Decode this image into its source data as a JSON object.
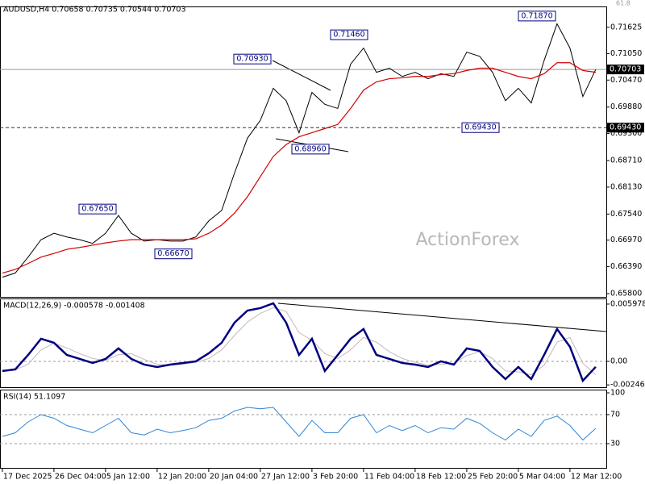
{
  "chart_data": [
    {
      "type": "line",
      "title": "AUDUSD,H4 0.70658 0.70735 0.70544 0.70703",
      "watermark": "ActionForex",
      "fib_label": "61.8",
      "x": [
        0,
        11,
        22,
        33,
        44,
        55,
        66,
        77,
        88,
        99,
        110,
        121,
        132,
        143,
        154,
        165,
        176,
        187,
        198,
        209,
        220,
        231,
        242,
        253,
        264,
        275,
        286,
        297,
        308,
        319,
        330,
        341,
        352,
        363,
        374,
        385,
        396,
        407,
        418,
        429,
        440,
        451,
        462,
        473,
        484,
        495,
        506
      ],
      "xlim": [
        -2,
        515
      ],
      "ylim": [
        0.6573,
        0.7208
      ],
      "yticks": [
        0.71625,
        {
          "value": 0.7105,
          "label": "0.71050"
        },
        {
          "value": 0.7047,
          "label": "0.70470"
        },
        {
          "value": 0.6988,
          "label": "0.69880"
        },
        {
          "value": 0.693,
          "label": "0.69300"
        },
        {
          "value": 0.6871,
          "label": "0.68710"
        },
        {
          "value": 0.6813,
          "label": "0.68130"
        },
        {
          "value": 0.6754,
          "label": "0.67540"
        },
        {
          "value": 0.6697,
          "label": "0.66970"
        },
        {
          "value": 0.6639,
          "label": "0.66390"
        },
        {
          "value": 0.658,
          "label": "0.65800"
        }
      ],
      "series": [
        {
          "color": "#000000",
          "values": [
            0.6616,
            0.6625,
            0.666,
            0.6698,
            0.6712,
            0.6704,
            0.6698,
            0.669,
            0.6712,
            0.6751,
            0.6712,
            0.6695,
            0.6698,
            0.6695,
            0.6695,
            0.6704,
            0.6739,
            0.6762,
            0.6844,
            0.692,
            0.6959,
            0.7029,
            0.7002,
            0.6932,
            0.702,
            0.6994,
            0.6985,
            0.7082,
            0.7117,
            0.7064,
            0.7073,
            0.7055,
            0.7064,
            0.705,
            0.7061,
            0.7055,
            0.7108,
            0.7099,
            0.7064,
            0.7002,
            0.7029,
            0.6997,
            0.709,
            0.717,
            0.7117,
            0.7011,
            0.70703
          ]
        },
        {
          "color": "#d40000",
          "values": [
            0.6625,
            0.6633,
            0.6646,
            0.666,
            0.6668,
            0.6677,
            0.6681,
            0.6686,
            0.6691,
            0.6695,
            0.6698,
            0.6698,
            0.6698,
            0.6698,
            0.6698,
            0.67,
            0.6712,
            0.673,
            0.6756,
            0.6792,
            0.6836,
            0.688,
            0.6906,
            0.6923,
            0.6932,
            0.6941,
            0.695,
            0.6985,
            0.7025,
            0.7043,
            0.705,
            0.7052,
            0.7055,
            0.7055,
            0.7059,
            0.7061,
            0.7068,
            0.7073,
            0.7073,
            0.7064,
            0.7055,
            0.705,
            0.7061,
            0.7085,
            0.7085,
            0.7068,
            0.7064
          ]
        }
      ],
      "annotations": [
        {
          "label": "0.71870",
          "value": 0.7187
        },
        {
          "label": "0.71460",
          "value": 0.7146
        },
        {
          "label": "0.70930",
          "value": 0.7093
        },
        {
          "label": "0.68960",
          "value": 0.6896
        },
        {
          "label": "0.69430",
          "value": 0.6943
        },
        {
          "label": "0.67650",
          "value": 0.6765
        },
        {
          "label": "0.66670",
          "value": 0.6667
        }
      ],
      "current_price": {
        "value": 0.70703,
        "label": "0.70703"
      }
    },
    {
      "type": "line",
      "title": "MACD(12,26,9) -0.000578 -0.001408",
      "x": [
        0,
        11,
        22,
        33,
        44,
        55,
        66,
        77,
        88,
        99,
        110,
        121,
        132,
        143,
        154,
        165,
        176,
        187,
        198,
        209,
        220,
        231,
        242,
        253,
        264,
        275,
        286,
        297,
        308,
        319,
        330,
        341,
        352,
        363,
        374,
        385,
        396,
        407,
        418,
        429,
        440,
        451,
        462,
        473,
        484,
        495,
        506
      ],
      "xlim": [
        -2,
        515
      ],
      "ylim": [
        -0.0027,
        0.00648
      ],
      "yticks": [
        0.005978,
        {
          "value": 0,
          "label": "0.00"
        },
        -0.00246
      ],
      "levels": [
        0
      ],
      "series": [
        {
          "color": "#c8b8b8",
          "values": [
            -0.0009,
            -0.0009,
            -0.0003,
            0.0012,
            0.0019,
            0.0014,
            0.0008,
            0.0003,
            0.0001,
            0.0007,
            0.0008,
            0.0002,
            -0.0003,
            -0.0004,
            -0.0003,
            -0.0001,
            0.0003,
            0.0012,
            0.0027,
            0.0041,
            0.005,
            0.0056,
            0.0052,
            0.003,
            0.0022,
            0.0008,
            0.0003,
            0.0012,
            0.0025,
            0.002,
            0.001,
            0.0003,
            -0.0001,
            -0.0004,
            -0.0003,
            -0.0002,
            0.0006,
            0.001,
            0.0003,
            -0.001,
            -0.0011,
            -0.0014,
            -0.0004,
            0.002,
            0.0025,
            -0.0002,
            -0.0014
          ]
        },
        {
          "color": "#000080",
          "values": [
            -0.00101,
            -0.00084,
            0.00067,
            0.00236,
            0.00194,
            0.00067,
            0.00025,
            -0.00017,
            0.00025,
            0.00135,
            0.00025,
            -0.00034,
            -0.00059,
            -0.00034,
            -0.00017,
            0,
            0.00084,
            0.00194,
            0.00404,
            0.0053,
            0.00556,
            0.00606,
            0.00404,
            0.00067,
            0.00236,
            -0.00101,
            0.00067,
            0.00236,
            0.00337,
            0.00067,
            0.00025,
            -0.00017,
            -0.00034,
            -0.00059,
            0,
            -0.00034,
            0.00135,
            0.00109,
            -0.00059,
            -0.00185,
            -0.00059,
            -0.00185,
            0.00067,
            0.00337,
            0.00152,
            -0.00202,
            -0.00058
          ]
        }
      ]
    },
    {
      "type": "line",
      "title": "RSI(14) 51.1097",
      "x": [
        0,
        11,
        22,
        33,
        44,
        55,
        66,
        77,
        88,
        99,
        110,
        121,
        132,
        143,
        154,
        165,
        176,
        187,
        198,
        209,
        220,
        231,
        242,
        253,
        264,
        275,
        286,
        297,
        308,
        319,
        330,
        341,
        352,
        363,
        374,
        385,
        396,
        407,
        418,
        429,
        440,
        451,
        462,
        473,
        484,
        495,
        506
      ],
      "xlim": [
        -2,
        515
      ],
      "ylim": [
        0,
        100
      ],
      "yticks": [
        100,
        70,
        30
      ],
      "levels": [
        70,
        30
      ],
      "xticks": [
        {
          "value": 0,
          "label": "17 Dec 2025"
        },
        {
          "value": 44,
          "label": "26 Dec 04:00"
        },
        {
          "value": 88,
          "label": "5 Jan 12:00"
        },
        {
          "value": 132,
          "label": "12 Jan 20:00"
        },
        {
          "value": 176,
          "label": "20 Jan 04:00"
        },
        {
          "value": 220,
          "label": "27 Jan 12:00"
        },
        {
          "value": 264,
          "label": "3 Feb 20:00"
        },
        {
          "value": 308,
          "label": "11 Feb 04:00"
        },
        {
          "value": 352,
          "label": "18 Feb 12:00"
        },
        {
          "value": 396,
          "label": "25 Feb 20:00"
        },
        {
          "value": 440,
          "label": "5 Mar 04:00"
        },
        {
          "value": 484,
          "label": "12 Mar 12:00"
        }
      ],
      "series": [
        {
          "color": "#2f86d6",
          "values": [
            40,
            45,
            60,
            70,
            65,
            55,
            50,
            45,
            55,
            65,
            45,
            42,
            50,
            45,
            48,
            52,
            62,
            65,
            75,
            80,
            78,
            80,
            60,
            40,
            62,
            45,
            45,
            65,
            70,
            45,
            55,
            48,
            55,
            45,
            52,
            50,
            65,
            58,
            45,
            35,
            50,
            40,
            62,
            68,
            55,
            35,
            51.1
          ]
        }
      ]
    }
  ]
}
